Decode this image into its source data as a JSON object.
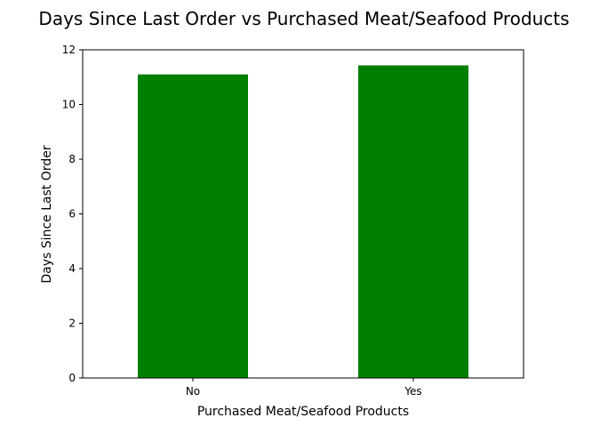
{
  "chart_data": {
    "type": "bar",
    "title": "Days Since Last Order vs Purchased Meat/Seafood Products",
    "xlabel": "Purchased Meat/Seafood Products",
    "ylabel": "Days Since Last Order",
    "categories": [
      "No",
      "Yes"
    ],
    "values": [
      11.1,
      11.43
    ],
    "ylim": [
      0,
      12
    ],
    "yticks": [
      "0",
      "2",
      "4",
      "6",
      "8",
      "10",
      "12"
    ],
    "bar_color": "#008000",
    "grid": false,
    "legend": false
  }
}
